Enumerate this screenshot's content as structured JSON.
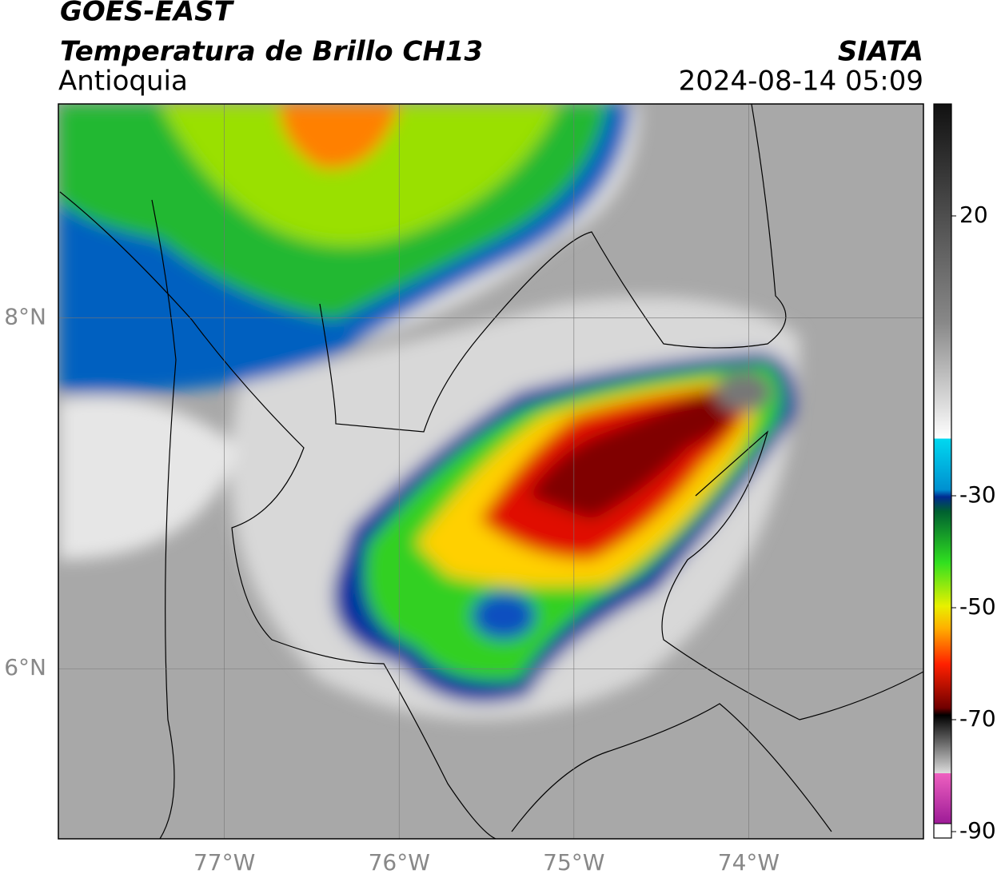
{
  "header": {
    "satellite": "GOES-EAST",
    "product": "Temperatura de Brillo CH13",
    "region": "Antioquia",
    "source": "SIATA",
    "datetime": "2024-08-14 05:09"
  },
  "map": {
    "xlim": [
      -77.95,
      -73.0
    ],
    "ylim": [
      5.03,
      9.22
    ],
    "xticks": [
      {
        "value": -77,
        "label": "77°W"
      },
      {
        "value": -76,
        "label": "76°W"
      },
      {
        "value": -75,
        "label": "75°W"
      },
      {
        "value": -74,
        "label": "74°W"
      }
    ],
    "yticks": [
      {
        "value": 6,
        "label": "6°N"
      },
      {
        "value": 8,
        "label": "8°N"
      }
    ],
    "grid": true
  },
  "colorbar": {
    "lim": [
      -90,
      40
    ],
    "ticks": [
      -90,
      -70,
      -50,
      -30,
      20
    ]
  }
}
